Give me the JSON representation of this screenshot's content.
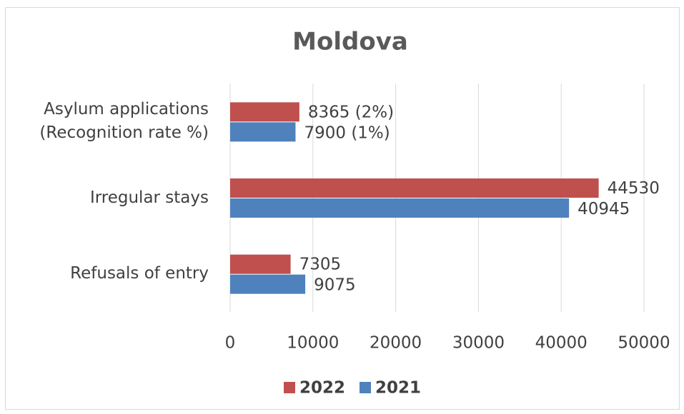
{
  "chart_data": {
    "type": "hbar",
    "title": "Moldova",
    "categories": [
      "Asylum applications (Recognition rate %)",
      "Irregular stays",
      "Refusals of entry"
    ],
    "series": [
      {
        "name": "2022",
        "color": "#c0504d",
        "values": [
          8365,
          44530,
          7305
        ],
        "value_labels": [
          "8365 (2%)",
          "44530",
          "7305"
        ]
      },
      {
        "name": "2021",
        "color": "#4f81bd",
        "values": [
          7900,
          40945,
          9075
        ],
        "value_labels": [
          "7900 (1%)",
          "40945",
          "9075"
        ]
      }
    ],
    "xlim": [
      0,
      50000
    ],
    "xticks": [
      0,
      10000,
      20000,
      30000,
      40000,
      50000
    ],
    "grid": true,
    "legend": "bottom"
  }
}
